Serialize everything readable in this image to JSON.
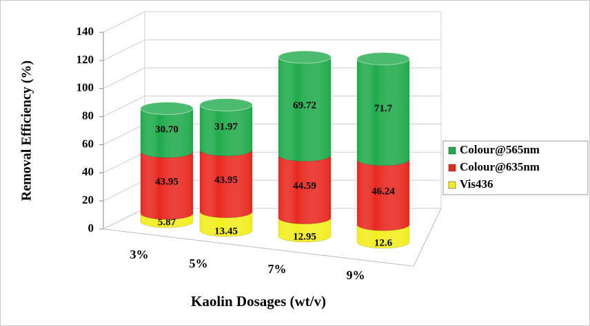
{
  "chart_data": {
    "type": "bar3d-stacked-cylinder",
    "xlabel": "Kaolin Dosages (wt/v)",
    "ylabel": "Removal Efficiency (%)",
    "categories": [
      "3%",
      "5%",
      "7%",
      "9%"
    ],
    "ylim": [
      0,
      140
    ],
    "yticks": [
      0,
      20,
      40,
      60,
      80,
      100,
      120,
      140
    ],
    "grid": true,
    "legend": "right",
    "series": [
      {
        "name": "Vis436",
        "color": "#f2ee1c",
        "values": [
          5.87,
          13.45,
          12.95,
          12.6
        ],
        "value_labels": [
          "5.87",
          "13.45",
          "12.95",
          "12.6"
        ]
      },
      {
        "name": "Colour@635nm",
        "color": "#e8271f",
        "values": [
          43.95,
          43.95,
          44.59,
          46.24
        ],
        "value_labels": [
          "43.95",
          "43.95",
          "44.59",
          "46.24"
        ]
      },
      {
        "name": "Colour@565nm",
        "color": "#1faa4b",
        "values": [
          30.7,
          31.97,
          69.72,
          71.7
        ],
        "value_labels": [
          "30.70",
          "31.97",
          "69.72",
          "71.7"
        ]
      }
    ]
  }
}
